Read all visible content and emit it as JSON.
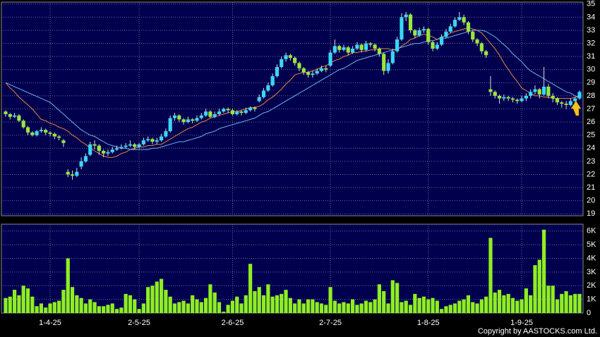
{
  "chart_data": {
    "type": "candlestick",
    "categories": [
      null,
      null,
      null,
      null,
      null,
      null,
      null,
      null,
      null,
      null,
      "1-4-25",
      null,
      null,
      null,
      null,
      null,
      null,
      null,
      null,
      null,
      null,
      null,
      null,
      null,
      null,
      null,
      null,
      null,
      null,
      null,
      "2-5-25",
      null,
      null,
      null,
      null,
      null,
      null,
      null,
      null,
      null,
      null,
      null,
      null,
      null,
      null,
      null,
      null,
      null,
      null,
      null,
      null,
      "2-6-25",
      null,
      null,
      null,
      null,
      null,
      null,
      null,
      null,
      null,
      null,
      null,
      null,
      null,
      null,
      null,
      null,
      null,
      null,
      null,
      null,
      null,
      "2-7-25",
      null,
      null,
      null,
      null,
      null,
      null,
      null,
      null,
      null,
      null,
      null,
      null,
      null,
      null,
      null,
      null,
      null,
      null,
      null,
      null,
      null,
      "1-8-25",
      null,
      null,
      null,
      null,
      null,
      null,
      null,
      null,
      null,
      null,
      null,
      null,
      null,
      null,
      null,
      null,
      null,
      null,
      null,
      null,
      "1-9-25",
      null,
      null,
      null,
      null,
      null,
      null,
      null,
      null,
      null,
      null,
      null,
      null,
      null
    ],
    "ohlc": [
      [
        26.8,
        26.9,
        26.4,
        26.6
      ],
      [
        26.6,
        26.7,
        26.2,
        26.4
      ],
      [
        26.4,
        26.7,
        26.3,
        26.5
      ],
      [
        26.5,
        26.6,
        26.0,
        26.1
      ],
      [
        26.1,
        26.2,
        25.5,
        25.6
      ],
      [
        25.6,
        25.7,
        25.0,
        25.2
      ],
      [
        25.2,
        25.3,
        24.9,
        25.0
      ],
      [
        25.0,
        25.4,
        24.9,
        25.3
      ],
      [
        25.3,
        25.6,
        25.2,
        25.4
      ],
      [
        25.4,
        25.5,
        25.0,
        25.2
      ],
      [
        25.2,
        25.3,
        24.9,
        25.1
      ],
      [
        25.1,
        25.2,
        24.7,
        24.9
      ],
      [
        24.9,
        25.0,
        24.6,
        24.8
      ],
      [
        24.6,
        24.7,
        24.1,
        24.4
      ],
      [
        22.2,
        22.4,
        21.8,
        22.0
      ],
      [
        22.0,
        22.3,
        21.6,
        21.9
      ],
      [
        21.9,
        22.5,
        21.8,
        22.2
      ],
      [
        22.6,
        23.3,
        22.4,
        23.0
      ],
      [
        23.0,
        23.6,
        22.9,
        23.4
      ],
      [
        23.5,
        24.5,
        23.4,
        24.3
      ],
      [
        24.3,
        24.6,
        23.9,
        24.2
      ],
      [
        24.2,
        24.3,
        23.5,
        23.8
      ],
      [
        23.8,
        23.9,
        23.3,
        23.6
      ],
      [
        23.6,
        23.9,
        23.4,
        23.7
      ],
      [
        23.7,
        24.1,
        23.6,
        23.9
      ],
      [
        23.9,
        24.2,
        23.8,
        24.0
      ],
      [
        24.0,
        24.3,
        23.9,
        24.1
      ],
      [
        24.1,
        24.4,
        24.0,
        24.2
      ],
      [
        24.2,
        24.6,
        24.1,
        24.3
      ],
      [
        24.3,
        24.4,
        23.9,
        24.1
      ],
      [
        24.1,
        24.4,
        24.0,
        24.3
      ],
      [
        24.3,
        24.8,
        24.2,
        24.6
      ],
      [
        24.6,
        24.9,
        24.5,
        24.7
      ],
      [
        24.7,
        24.8,
        24.3,
        24.5
      ],
      [
        24.5,
        24.8,
        24.3,
        24.6
      ],
      [
        24.6,
        25.1,
        24.5,
        24.9
      ],
      [
        24.9,
        25.5,
        24.8,
        25.3
      ],
      [
        25.3,
        26.5,
        25.2,
        26.3
      ],
      [
        26.3,
        26.7,
        26.1,
        26.5
      ],
      [
        26.5,
        26.6,
        26.0,
        26.2
      ],
      [
        26.2,
        26.3,
        25.8,
        26.0
      ],
      [
        26.0,
        26.4,
        25.9,
        26.2
      ],
      [
        26.2,
        26.3,
        25.9,
        26.1
      ],
      [
        26.1,
        26.5,
        26.0,
        26.3
      ],
      [
        26.3,
        26.7,
        26.2,
        26.5
      ],
      [
        26.5,
        27.0,
        26.4,
        26.8
      ],
      [
        26.8,
        26.9,
        26.3,
        26.4
      ],
      [
        26.4,
        26.8,
        26.3,
        26.6
      ],
      [
        26.6,
        27.0,
        26.5,
        26.8
      ],
      [
        26.8,
        27.1,
        26.7,
        27.0
      ],
      [
        27.0,
        27.1,
        26.7,
        26.9
      ],
      [
        26.9,
        27.0,
        26.5,
        26.6
      ],
      [
        26.6,
        26.9,
        26.5,
        26.8
      ],
      [
        26.8,
        26.9,
        26.5,
        26.7
      ],
      [
        26.7,
        27.1,
        26.6,
        26.9
      ],
      [
        26.9,
        27.2,
        26.8,
        27.1
      ],
      [
        27.1,
        27.2,
        26.8,
        27.0
      ],
      [
        27.6,
        28.1,
        27.5,
        27.9
      ],
      [
        27.9,
        28.6,
        27.8,
        28.4
      ],
      [
        28.4,
        29.0,
        28.3,
        28.8
      ],
      [
        28.8,
        29.7,
        28.7,
        29.5
      ],
      [
        29.5,
        30.4,
        29.4,
        30.2
      ],
      [
        30.2,
        31.0,
        30.1,
        30.8
      ],
      [
        30.8,
        31.3,
        30.6,
        31.1
      ],
      [
        31.1,
        31.2,
        30.7,
        30.9
      ],
      [
        30.9,
        31.0,
        30.3,
        30.5
      ],
      [
        30.5,
        30.6,
        29.9,
        30.1
      ],
      [
        30.1,
        30.2,
        29.6,
        29.8
      ],
      [
        29.8,
        29.9,
        29.4,
        29.6
      ],
      [
        29.6,
        29.9,
        29.4,
        29.7
      ],
      [
        29.7,
        30.1,
        29.6,
        29.9
      ],
      [
        29.9,
        30.3,
        29.8,
        30.1
      ],
      [
        30.1,
        30.3,
        29.8,
        30.0
      ],
      [
        30.3,
        31.5,
        30.2,
        31.3
      ],
      [
        31.3,
        32.3,
        31.2,
        31.8
      ],
      [
        31.8,
        31.9,
        31.3,
        31.5
      ],
      [
        31.5,
        31.9,
        31.4,
        31.7
      ],
      [
        31.7,
        31.8,
        31.1,
        31.3
      ],
      [
        31.3,
        31.8,
        31.2,
        31.6
      ],
      [
        31.6,
        32.1,
        31.5,
        31.9
      ],
      [
        31.9,
        32.0,
        31.3,
        31.5
      ],
      [
        31.5,
        32.2,
        31.4,
        32.0
      ],
      [
        32.0,
        32.1,
        31.7,
        31.9
      ],
      [
        31.9,
        32.0,
        31.4,
        31.6
      ],
      [
        31.6,
        31.7,
        31.0,
        31.2
      ],
      [
        31.2,
        31.3,
        29.6,
        29.9
      ],
      [
        29.9,
        30.8,
        29.7,
        30.5
      ],
      [
        30.5,
        31.6,
        30.4,
        31.4
      ],
      [
        31.4,
        32.5,
        31.3,
        32.3
      ],
      [
        32.3,
        34.3,
        32.2,
        34.0
      ],
      [
        34.0,
        34.4,
        33.7,
        34.2
      ],
      [
        34.2,
        34.3,
        32.8,
        33.0
      ],
      [
        33.0,
        33.1,
        32.4,
        32.6
      ],
      [
        32.6,
        33.2,
        32.5,
        33.0
      ],
      [
        33.0,
        33.3,
        32.8,
        33.1
      ],
      [
        33.1,
        33.2,
        31.9,
        32.1
      ],
      [
        32.1,
        32.2,
        31.4,
        31.6
      ],
      [
        31.6,
        32.1,
        31.5,
        31.9
      ],
      [
        31.9,
        32.7,
        31.8,
        32.5
      ],
      [
        32.5,
        33.1,
        32.4,
        32.9
      ],
      [
        32.9,
        33.5,
        32.8,
        33.3
      ],
      [
        33.3,
        34.0,
        33.2,
        33.8
      ],
      [
        33.8,
        34.4,
        33.7,
        34.0
      ],
      [
        34.0,
        34.2,
        33.4,
        33.6
      ],
      [
        33.6,
        33.7,
        32.7,
        32.9
      ],
      [
        32.9,
        33.0,
        32.1,
        32.3
      ],
      [
        32.3,
        32.4,
        31.8,
        32.0
      ],
      [
        32.0,
        32.1,
        31.2,
        31.4
      ],
      [
        31.4,
        31.5,
        30.9,
        31.1
      ],
      [
        28.5,
        29.5,
        28.0,
        28.3
      ],
      [
        28.3,
        28.4,
        27.8,
        28.0
      ],
      [
        28.0,
        28.1,
        27.4,
        27.8
      ],
      [
        27.8,
        28.1,
        27.6,
        27.9
      ],
      [
        27.9,
        28.0,
        27.6,
        27.8
      ],
      [
        27.8,
        27.9,
        27.5,
        27.7
      ],
      [
        27.7,
        27.8,
        27.4,
        27.6
      ],
      [
        27.6,
        28.0,
        27.5,
        27.8
      ],
      [
        27.8,
        28.2,
        27.6,
        28.0
      ],
      [
        28.0,
        28.5,
        27.8,
        28.3
      ],
      [
        28.3,
        28.8,
        28.1,
        28.5
      ],
      [
        28.5,
        28.6,
        27.8,
        28.1
      ],
      [
        28.1,
        30.2,
        28.0,
        28.7
      ],
      [
        28.7,
        28.9,
        27.8,
        28.0
      ],
      [
        28.0,
        28.2,
        27.5,
        27.8
      ],
      [
        27.8,
        27.9,
        27.3,
        27.5
      ],
      [
        27.5,
        27.6,
        27.1,
        27.4
      ],
      [
        27.4,
        27.6,
        27.0,
        27.3
      ],
      [
        27.3,
        27.8,
        27.2,
        27.6
      ],
      [
        27.6,
        27.9,
        27.5,
        27.8
      ],
      [
        27.8,
        28.4,
        27.7,
        28.3
      ]
    ],
    "up_color": "#3ad6f5",
    "down_color": "#9ae63a",
    "lines": [
      {
        "color": "#e8883a",
        "values": [
          29.0,
          28.6,
          28.3,
          27.9,
          27.6,
          27.3,
          27.0,
          26.6,
          26.2,
          26.1,
          25.9,
          25.8,
          25.6,
          25.5,
          25.3,
          25.0,
          24.8,
          24.5,
          24.3,
          24.0,
          23.8,
          23.6,
          23.4,
          23.3,
          23.3,
          23.4,
          23.6,
          23.7,
          23.9,
          24.0,
          24.1,
          24.1,
          24.2,
          24.2,
          24.3,
          24.3,
          24.5,
          24.7,
          24.9,
          25.1,
          25.3,
          25.5,
          25.6,
          25.8,
          26.0,
          26.1,
          26.3,
          26.4,
          26.5,
          26.6,
          26.7,
          26.8,
          26.8,
          26.9,
          27.0,
          27.1,
          27.1,
          27.2,
          27.4,
          27.7,
          27.9,
          28.2,
          28.5,
          28.9,
          29.2,
          29.6,
          29.7,
          29.8,
          29.8,
          29.9,
          30.0,
          30.2,
          30.3,
          30.5,
          30.7,
          30.8,
          31.0,
          31.1,
          31.3,
          31.3,
          31.4,
          31.4,
          31.5,
          31.5,
          31.6,
          31.6,
          31.6,
          31.5,
          31.5,
          31.8,
          32.0,
          32.3,
          32.4,
          32.6,
          32.7,
          32.6,
          32.5,
          32.3,
          32.5,
          32.6,
          32.8,
          32.9,
          33.0,
          33.1,
          33.2,
          33.1,
          33.0,
          32.8,
          32.4,
          32.0,
          31.6,
          31.1,
          30.5,
          30.0,
          29.5,
          29.1,
          28.6,
          28.4,
          28.2,
          28.0,
          28.0,
          27.9,
          27.9,
          27.8,
          27.8,
          27.8,
          27.8,
          27.8,
          27.9,
          27.9
        ]
      },
      {
        "color": "#6fb4f0",
        "values": [
          29.0,
          28.85,
          28.7,
          28.55,
          28.4,
          28.25,
          28.1,
          27.95,
          27.8,
          27.65,
          27.5,
          27.2,
          26.9,
          26.6,
          26.3,
          26.0,
          25.7,
          25.4,
          25.2,
          25.0,
          24.9,
          24.7,
          24.5,
          24.3,
          24.2,
          24.1,
          24.0,
          24.0,
          23.9,
          23.9,
          23.9,
          23.9,
          23.9,
          24.0,
          24.0,
          24.1,
          24.2,
          24.3,
          24.4,
          24.5,
          24.5,
          24.6,
          24.7,
          24.8,
          24.9,
          25.1,
          25.2,
          25.3,
          25.5,
          25.6,
          25.7,
          25.8,
          25.9,
          26.0,
          26.1,
          26.2,
          26.3,
          26.5,
          26.7,
          26.8,
          27.0,
          27.2,
          27.4,
          27.6,
          27.8,
          28.0,
          28.2,
          28.4,
          28.6,
          28.8,
          29.0,
          29.2,
          29.4,
          29.6,
          29.8,
          30.0,
          30.1,
          30.3,
          30.5,
          30.7,
          30.8,
          30.9,
          31.0,
          31.1,
          31.2,
          31.3,
          31.4,
          31.5,
          31.6,
          31.7,
          31.8,
          31.9,
          32.0,
          32.0,
          32.1,
          32.2,
          32.2,
          32.3,
          32.4,
          32.4,
          32.5,
          32.6,
          32.7,
          32.8,
          32.9,
          33.0,
          33.0,
          33.0,
          32.9,
          32.7,
          32.5,
          32.2,
          31.9,
          31.6,
          31.2,
          30.9,
          30.6,
          30.2,
          29.9,
          29.7,
          29.5,
          29.3,
          29.1,
          28.9,
          28.7,
          28.5,
          28.3,
          28.2,
          28.0,
          27.9
        ]
      }
    ],
    "ylim": [
      18.85,
      35.15
    ],
    "yticks": [
      19,
      20,
      21,
      22,
      23,
      24,
      25,
      26,
      27,
      28,
      29,
      30,
      31,
      32,
      33,
      34,
      35
    ],
    "grid": true,
    "volume": {
      "type": "bar",
      "color": "#8fee22",
      "values": [
        1100,
        1200,
        1700,
        1300,
        2000,
        1800,
        1200,
        500,
        700,
        400,
        700,
        800,
        900,
        1700,
        4000,
        1900,
        1300,
        1100,
        700,
        1000,
        800,
        500,
        500,
        600,
        700,
        300,
        400,
        1400,
        1300,
        1000,
        300,
        700,
        1900,
        2000,
        2300,
        2500,
        1700,
        1200,
        700,
        800,
        900,
        700,
        1300,
        1000,
        800,
        1100,
        2100,
        1500,
        800,
        100,
        600,
        900,
        1200,
        700,
        1300,
        3600,
        1600,
        1900,
        1300,
        2100,
        1200,
        1300,
        1400,
        1700,
        1100,
        700,
        1000,
        700,
        1000,
        1000,
        800,
        700,
        600,
        1900,
        900,
        700,
        800,
        700,
        1000,
        600,
        700,
        900,
        800,
        1000,
        2100,
        1600,
        700,
        2400,
        2200,
        800,
        900,
        600,
        1400,
        1100,
        1200,
        1000,
        1100,
        900,
        300,
        500,
        600,
        700,
        900,
        1000,
        1300,
        800,
        700,
        1000,
        1200,
        5500,
        1500,
        1700,
        1300,
        1400,
        1100,
        900,
        1000,
        1800,
        1300,
        3500,
        3900,
        6100,
        2000,
        2000,
        1000,
        1400,
        1600,
        1300,
        1400,
        1400
      ],
      "ylim": [
        0,
        6500
      ],
      "yticks": [
        0,
        {
          "value": 1000,
          "label": "1K"
        },
        {
          "value": 2000,
          "label": "2K"
        },
        {
          "value": 3000,
          "label": "3K"
        },
        {
          "value": 4000,
          "label": "4K"
        },
        {
          "value": 5000,
          "label": "5K"
        },
        {
          "value": 6000,
          "label": "6K"
        }
      ]
    }
  },
  "copyright": "Copyright by AASTOCKS.com Ltd."
}
